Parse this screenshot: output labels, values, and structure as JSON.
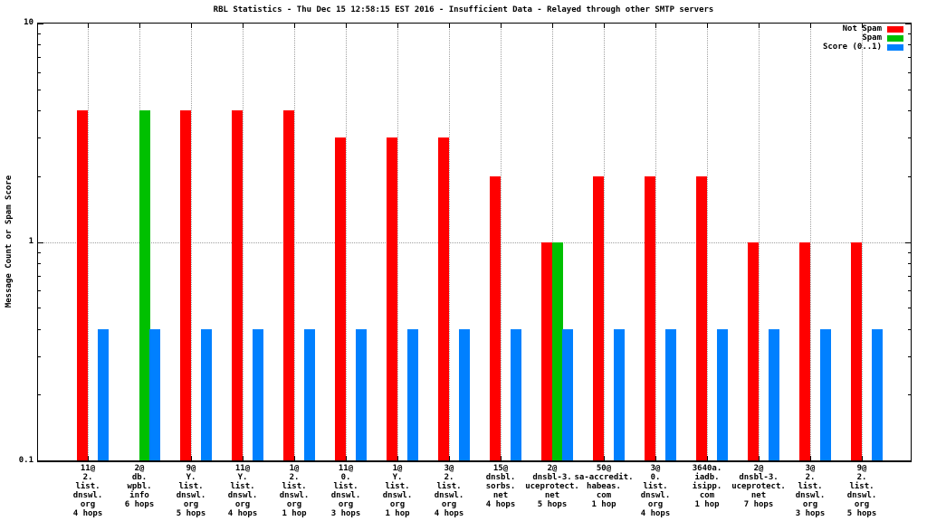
{
  "header": {
    "title": "RBL Statistics - Thu Dec 15 12:58:15 EST 2016 - Insufficient Data - Relayed through other SMTP servers"
  },
  "chart_data": {
    "type": "bar",
    "title": "RBL Statistics - Thu Dec 15 12:58:15 EST 2016 - Insufficient Data - Relayed through other SMTP servers",
    "xlabel": "",
    "ylabel": "Message Count or Spam Score",
    "yscale": "log",
    "ylim": [
      0.1,
      10
    ],
    "ytick_labels": [
      "10",
      "1",
      "0.1"
    ],
    "ytick_values": [
      10,
      1,
      0.1
    ],
    "yminor_tick_values": [
      0.2,
      0.3,
      0.4,
      0.5,
      0.6,
      0.7,
      0.8,
      0.9,
      2,
      3,
      4,
      5,
      6,
      7,
      8,
      9
    ],
    "grid": {
      "horizontal_at_values": [
        1
      ],
      "vertical_at_each_category": true,
      "style": "dotted-gray"
    },
    "legend": {
      "position": "top-right",
      "entries": [
        {
          "label": "Not Spam",
          "series": "not_spam",
          "color": "#ff0000"
        },
        {
          "label": "Spam",
          "series": "spam",
          "color": "#00c000"
        },
        {
          "label": "Score (0..1)",
          "series": "score",
          "color": "#0080ff"
        }
      ]
    },
    "categories": [
      [
        "11@",
        "2.",
        "list.",
        "dnswl.",
        "org",
        "4 hops"
      ],
      [
        "2@",
        "db.",
        "wpbl.",
        "info",
        "6 hops"
      ],
      [
        "9@",
        "Y.",
        "list.",
        "dnswl.",
        "org",
        "5 hops"
      ],
      [
        "11@",
        "Y.",
        "list.",
        "dnswl.",
        "org",
        "4 hops"
      ],
      [
        "1@",
        "2.",
        "list.",
        "dnswl.",
        "org",
        "1 hop"
      ],
      [
        "11@",
        "0.",
        "list.",
        "dnswl.",
        "org",
        "3 hops"
      ],
      [
        "1@",
        "Y.",
        "list.",
        "dnswl.",
        "org",
        "1 hop"
      ],
      [
        "3@",
        "2.",
        "list.",
        "dnswl.",
        "org",
        "4 hops"
      ],
      [
        "15@",
        "dnsbl.",
        "sorbs.",
        "net",
        "4 hops"
      ],
      [
        "2@",
        "dnsbl-3.",
        "uceprotect.",
        "net",
        "5 hops"
      ],
      [
        "50@",
        "sa-accredit.",
        "habeas.",
        "com",
        "1 hop"
      ],
      [
        "3@",
        "0.",
        "list.",
        "dnswl.",
        "org",
        "4 hops"
      ],
      [
        "3640a.",
        "iadb.",
        "isipp.",
        "com",
        "1 hop"
      ],
      [
        "2@",
        "dnsbl-3.",
        "uceprotect.",
        "net",
        "7 hops"
      ],
      [
        "3@",
        "2.",
        "list.",
        "dnswl.",
        "org",
        "3 hops"
      ],
      [
        "9@",
        "2.",
        "list.",
        "dnswl.",
        "org",
        "5 hops"
      ]
    ],
    "series": [
      {
        "name": "Not Spam",
        "key": "not_spam",
        "color": "#ff0000",
        "values": [
          4,
          0,
          4,
          4,
          4,
          3,
          3,
          3,
          2,
          1,
          2,
          2,
          2,
          1,
          1,
          1
        ]
      },
      {
        "name": "Spam",
        "key": "spam",
        "color": "#00c000",
        "values": [
          0,
          4,
          0,
          0,
          0,
          0,
          0,
          0,
          0,
          1,
          0,
          0,
          0,
          0,
          0,
          0
        ]
      },
      {
        "name": "Score (0..1)",
        "key": "score",
        "color": "#0080ff",
        "values": [
          0.4,
          0.4,
          0.4,
          0.4,
          0.4,
          0.4,
          0.4,
          0.4,
          0.4,
          0.4,
          0.4,
          0.4,
          0.4,
          0.4,
          0.4,
          0.4
        ]
      }
    ]
  },
  "colors": {
    "background": "#ffffff",
    "axis": "#000000",
    "grid": "#a0a0a0",
    "not_spam": "#ff0000",
    "spam": "#00c000",
    "score": "#0080ff"
  }
}
